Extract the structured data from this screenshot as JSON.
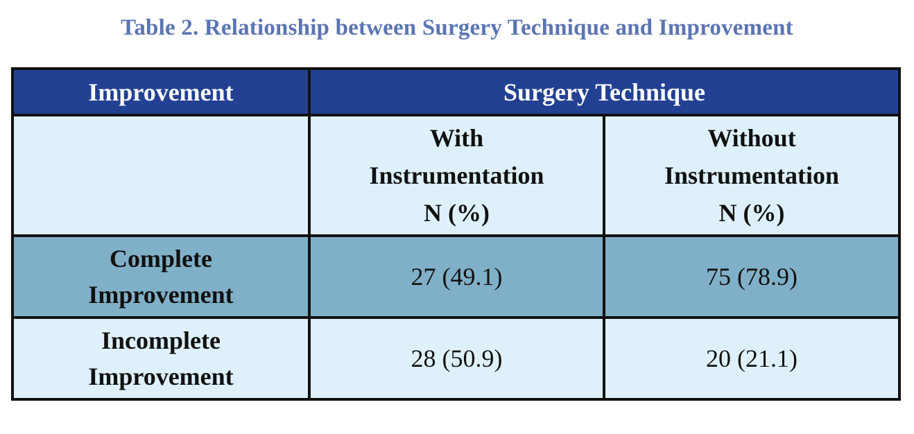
{
  "caption": "Table 2. Relationship between Surgery Technique and Improvement",
  "colors": {
    "caption": "#5b74b3",
    "header_bg": "#234193",
    "header_text": "#ffffff",
    "light_row_bg": "#def1fb",
    "shaded_row_bg": "#80b0c8",
    "border": "#111111"
  },
  "header": {
    "improvement": "Improvement",
    "surgery_technique": "Surgery Technique"
  },
  "subheader": {
    "with_instrumentation": {
      "line1": "With",
      "line2": "Instrumentation",
      "line3": "N (%)"
    },
    "without_instrumentation": {
      "line1": "Without",
      "line2": "Instrumentation",
      "line3": "N (%)"
    }
  },
  "rows": [
    {
      "label_line1": "Complete",
      "label_line2": "Improvement",
      "with": "27 (49.1)",
      "without": "75 (78.9)"
    },
    {
      "label_line1": "Incomplete",
      "label_line2": "Improvement",
      "with": "28 (50.9)",
      "without": "20 (21.1)"
    }
  ]
}
